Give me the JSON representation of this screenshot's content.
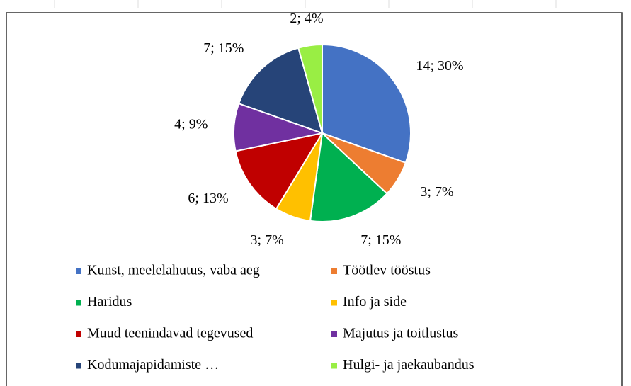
{
  "chart_data": {
    "type": "pie",
    "categories": [
      "Kunst, meelelahutus, vaba aeg",
      "Töötlev tööstus",
      "Haridus",
      "Info ja side",
      "Muud teenindavad tegevused",
      "Majutus ja toitlustus",
      "Kodumajapidamiste …",
      "Hulgi- ja jaekaubandus"
    ],
    "values": [
      14,
      3,
      7,
      3,
      6,
      4,
      7,
      2
    ],
    "value_labels": [
      "14; 30%",
      "3; 7%",
      "7; 15%",
      "3; 7%",
      "6; 13%",
      "4; 9%",
      "7; 15%",
      "2; 4%"
    ],
    "colors": [
      "#4472c4",
      "#ed7d31",
      "#00b050",
      "#ffc000",
      "#c00000",
      "#7030a0",
      "#264478",
      "#99ee44"
    ],
    "legend": "bottom"
  }
}
